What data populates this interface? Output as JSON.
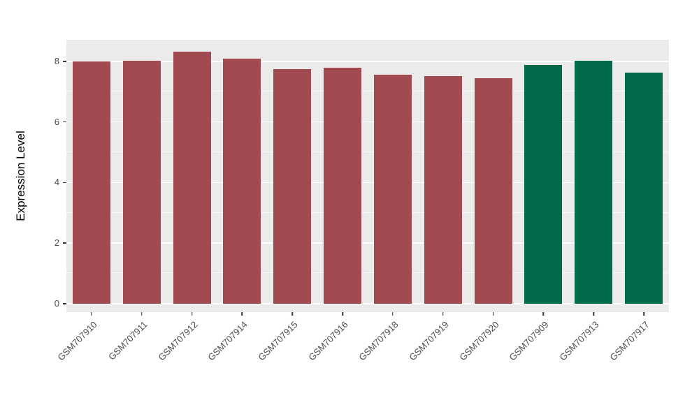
{
  "figure": {
    "background": "#FFFFFF"
  },
  "chart_data": {
    "type": "bar",
    "title": "",
    "xlabel": "",
    "ylabel": "Expression Level",
    "categories": [
      "GSM707910",
      "GSM707911",
      "GSM707912",
      "GSM707914",
      "GSM707915",
      "GSM707916",
      "GSM707918",
      "GSM707919",
      "GSM707920",
      "GSM707909",
      "GSM707913",
      "GSM707917"
    ],
    "values": [
      8.0,
      8.02,
      8.32,
      8.08,
      7.74,
      7.78,
      7.56,
      7.52,
      7.45,
      7.88,
      8.03,
      7.62
    ],
    "bar_colors": [
      "#A24A52",
      "#A24A52",
      "#A24A52",
      "#A24A52",
      "#A24A52",
      "#A24A52",
      "#A24A52",
      "#A24A52",
      "#A24A52",
      "#006B4A",
      "#006B4A",
      "#006B4A"
    ],
    "group_colors": {
      "red_group": "#A24A52",
      "green_group": "#006B4A"
    },
    "ylim": [
      0,
      8.32
    ],
    "ylim_display": [
      -0.28,
      8.71
    ],
    "yticks": [
      0,
      2,
      4,
      6,
      8
    ],
    "yticks_minor": [
      1,
      3,
      5,
      7
    ],
    "grid": true,
    "panel_background": "#EBEBEB",
    "grid_color": "#FFFFFF",
    "tick_label_color": "#4D4D4D",
    "axis_title_color": "#000000",
    "bar_width_fraction": 0.75,
    "x_label_angle": 45,
    "legend": "none"
  }
}
